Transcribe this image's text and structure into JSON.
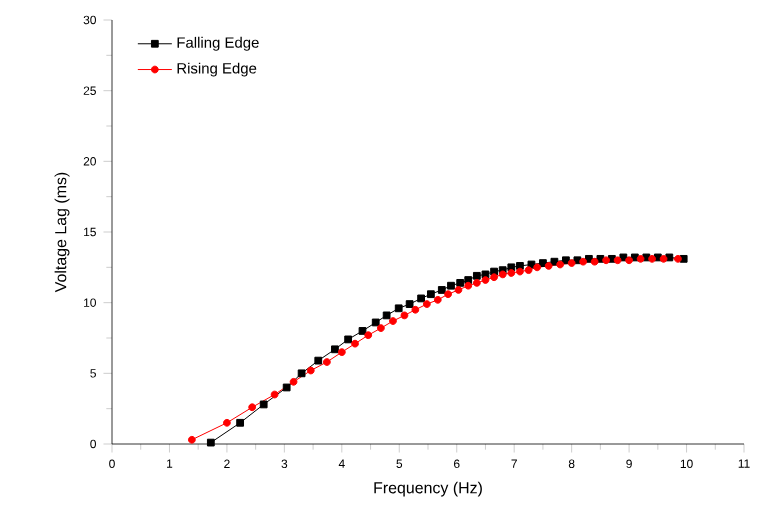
{
  "chart_data": {
    "type": "line",
    "xlabel": "Frequency (Hz)",
    "ylabel": "Voltage Lag (ms)",
    "xlim": [
      0,
      11
    ],
    "xticks": [
      0,
      1,
      2,
      3,
      4,
      5,
      6,
      7,
      8,
      9,
      10,
      11
    ],
    "ylim": [
      0,
      30
    ],
    "yticks": [
      0,
      5,
      10,
      15,
      20,
      25,
      30
    ],
    "grid": false,
    "legend": "top left",
    "line_style": "solid",
    "series": [
      {
        "name": "Falling Edge",
        "color": "#000000",
        "marker": "square",
        "x": [
          1.72,
          2.23,
          2.64,
          3.04,
          3.3,
          3.59,
          3.88,
          4.11,
          4.36,
          4.59,
          4.78,
          4.99,
          5.18,
          5.38,
          5.55,
          5.74,
          5.9,
          6.06,
          6.2,
          6.35,
          6.5,
          6.65,
          6.8,
          6.95,
          7.1,
          7.3,
          7.5,
          7.7,
          7.9,
          8.1,
          8.3,
          8.5,
          8.7,
          8.9,
          9.1,
          9.3,
          9.5,
          9.7,
          9.95
        ],
        "values": [
          0.1,
          1.5,
          2.8,
          4.0,
          5.0,
          5.9,
          6.7,
          7.4,
          8.0,
          8.6,
          9.1,
          9.6,
          9.9,
          10.3,
          10.6,
          10.9,
          11.2,
          11.4,
          11.6,
          11.9,
          12.0,
          12.2,
          12.3,
          12.5,
          12.6,
          12.7,
          12.8,
          12.9,
          13.0,
          13.0,
          13.1,
          13.1,
          13.1,
          13.2,
          13.2,
          13.2,
          13.2,
          13.2,
          13.1
        ]
      },
      {
        "name": "Rising Edge",
        "color": "#ff0000",
        "marker": "circle",
        "x": [
          1.39,
          2.0,
          2.44,
          2.83,
          3.16,
          3.46,
          3.74,
          4.0,
          4.23,
          4.46,
          4.68,
          4.89,
          5.09,
          5.28,
          5.48,
          5.67,
          5.85,
          6.03,
          6.2,
          6.35,
          6.5,
          6.65,
          6.8,
          6.95,
          7.1,
          7.25,
          7.4,
          7.6,
          7.8,
          8.0,
          8.2,
          8.4,
          8.6,
          8.8,
          9.0,
          9.2,
          9.4,
          9.6,
          9.85
        ],
        "values": [
          0.3,
          1.5,
          2.6,
          3.5,
          4.4,
          5.2,
          5.8,
          6.5,
          7.1,
          7.7,
          8.2,
          8.7,
          9.1,
          9.5,
          9.9,
          10.2,
          10.6,
          10.9,
          11.2,
          11.4,
          11.6,
          11.8,
          12.0,
          12.1,
          12.2,
          12.3,
          12.5,
          12.6,
          12.7,
          12.8,
          12.9,
          12.9,
          13.0,
          13.0,
          13.0,
          13.1,
          13.1,
          13.1,
          13.1
        ]
      }
    ]
  }
}
